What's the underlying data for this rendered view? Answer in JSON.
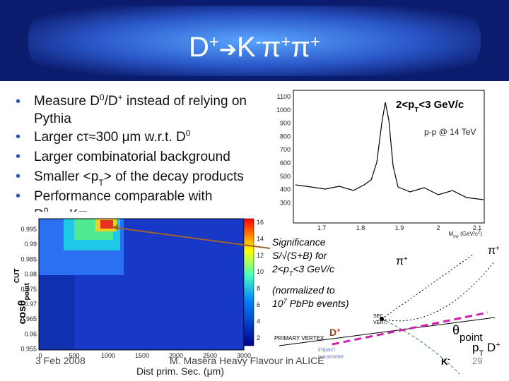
{
  "title": {
    "d": "D",
    "d_charge": "+",
    "arrow": "➔",
    "k": "K",
    "k_charge": "-",
    "pi": "π",
    "pi_charge": "+",
    "pi2": "π",
    "pi2_charge": "+"
  },
  "bullets": [
    [
      "Measure D",
      "0",
      "/D",
      "+",
      " instead of relying on",
      "Pythia"
    ],
    [
      "Larger cτ≈300 μm w.r.t. D",
      "0"
    ],
    [
      "Larger combinatorial background"
    ],
    [
      "Smaller <p",
      "T",
      "> of the decay products"
    ],
    [
      "Performance comparable with",
      "D",
      "0",
      " → Kπ"
    ]
  ],
  "mass_plot": {
    "label": [
      "2<p",
      "T",
      "<3 GeV/c"
    ],
    "energy": "p-p @ 14 TeV",
    "yticks": [
      "1100",
      "1000",
      "900",
      "800",
      "700",
      "600",
      "500",
      "400",
      "300"
    ],
    "xticks": [
      "1.7",
      "1.8",
      "1.9",
      "2",
      "2.1"
    ],
    "x_label": [
      "M",
      "inv",
      " (GeV/c",
      "2",
      ")"
    ]
  },
  "significance_map": {
    "yticks": [
      "0.995",
      "0.99",
      "0.985",
      "0.98",
      "0.975",
      "0.97",
      "0.965",
      "0.96",
      "0.955"
    ],
    "xticks": [
      "0",
      "500",
      "1000",
      "1500",
      "2000",
      "2500",
      "3000"
    ],
    "colorbar_ticks": [
      "16",
      "14",
      "12",
      "10",
      "8",
      "6",
      "4",
      "2"
    ],
    "y_label": [
      "cosθ",
      "point",
      "CUT"
    ],
    "x_label": "Dist prim. Sec. (μm)"
  },
  "annotation": {
    "significance": [
      "Significance",
      "S/√(S+B) for",
      "2<p",
      "T",
      "<3 GeV/c"
    ],
    "normalization": [
      "(normalized to",
      "10",
      "7",
      " PbPb events)"
    ]
  },
  "diagram": {
    "pi_left": [
      "π",
      "+"
    ],
    "pi_right": [
      "π",
      "+"
    ],
    "sec_vert": [
      "SEC.",
      "VERT."
    ],
    "primary_vertex": "PRIMARY VERTEX",
    "impact_parameter": [
      "impact",
      "parameter"
    ],
    "d_label": [
      "D",
      "+"
    ],
    "theta": [
      "θ",
      "point"
    ],
    "pt": [
      "p",
      "T",
      " D",
      "+"
    ],
    "k": [
      "K",
      "-"
    ]
  },
  "footer": {
    "date": "3 Feb 2008",
    "author": "M. Masera Heavy Flavour in ALICE",
    "page": "29"
  }
}
